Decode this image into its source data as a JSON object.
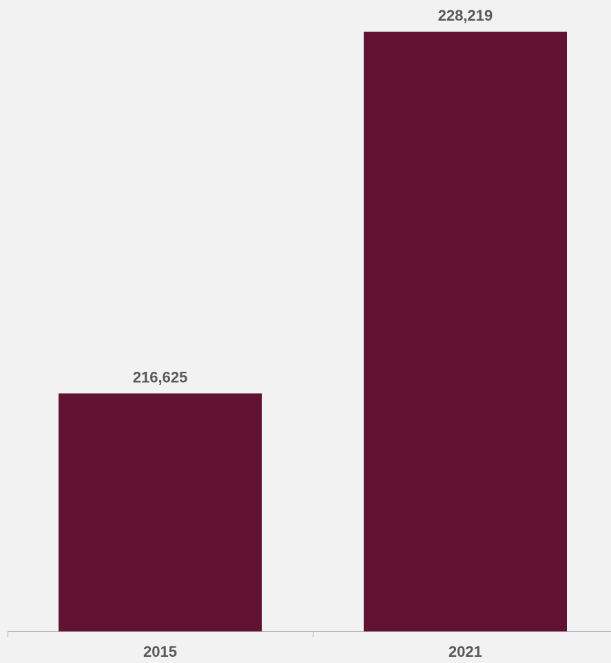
{
  "chart_data": {
    "type": "bar",
    "categories": [
      "2015",
      "2021"
    ],
    "values": [
      216625,
      228219
    ],
    "value_labels": [
      "216,625",
      "228,219"
    ],
    "title": "",
    "xlabel": "",
    "ylabel": "",
    "ylim": [
      209000,
      229000
    ],
    "grid": false,
    "legend": "none",
    "colors": {
      "bar": "#611232",
      "axis": "#a6a6a6",
      "text": "#595959",
      "background": "#f2f2f2"
    }
  }
}
